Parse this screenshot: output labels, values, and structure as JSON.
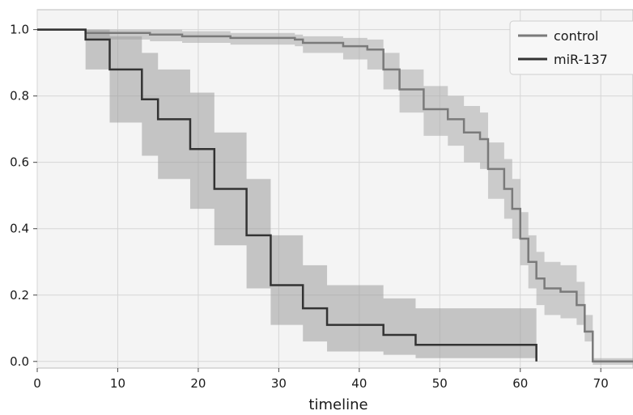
{
  "chart_data": {
    "type": "line",
    "subtype": "kaplan-meier survival curves with confidence bands",
    "title": "",
    "xlabel": "timeline",
    "ylabel": "",
    "xlim": [
      0,
      74
    ],
    "ylim": [
      -0.02,
      1.06
    ],
    "x_ticks": [
      0,
      10,
      20,
      30,
      40,
      50,
      60,
      70
    ],
    "y_ticks": [
      0.0,
      0.2,
      0.4,
      0.6,
      0.8,
      1.0
    ],
    "x_tick_labels": [
      "0",
      "10",
      "20",
      "30",
      "40",
      "50",
      "60",
      "70"
    ],
    "y_tick_labels": [
      "0.0",
      "0.2",
      "0.4",
      "0.6",
      "0.8",
      "1.0"
    ],
    "grid": true,
    "legend_position": "top-right",
    "series": [
      {
        "name": "control",
        "color": "#7a7a7a",
        "band_color": "#a9a9a9",
        "step_x": [
          0,
          6,
          9,
          14,
          18,
          24,
          32,
          33,
          38,
          41,
          43,
          45,
          48,
          51,
          53,
          55,
          56,
          58,
          59,
          60,
          61,
          62,
          63,
          65,
          67,
          68,
          69,
          75
        ],
        "step_y": [
          1.0,
          0.99,
          0.99,
          0.985,
          0.98,
          0.975,
          0.97,
          0.96,
          0.95,
          0.94,
          0.88,
          0.82,
          0.76,
          0.73,
          0.69,
          0.67,
          0.58,
          0.52,
          0.46,
          0.37,
          0.3,
          0.25,
          0.22,
          0.21,
          0.17,
          0.09,
          0.0,
          0.0
        ],
        "ci_lower": [
          1.0,
          0.97,
          0.97,
          0.965,
          0.96,
          0.955,
          0.95,
          0.93,
          0.91,
          0.88,
          0.82,
          0.75,
          0.68,
          0.65,
          0.6,
          0.58,
          0.49,
          0.43,
          0.37,
          0.29,
          0.22,
          0.17,
          0.14,
          0.13,
          0.11,
          0.06,
          -0.01,
          -0.01
        ],
        "ci_upper": [
          1.0,
          1.0,
          1.0,
          1.0,
          0.995,
          0.99,
          0.985,
          0.98,
          0.975,
          0.97,
          0.93,
          0.88,
          0.83,
          0.8,
          0.77,
          0.75,
          0.66,
          0.61,
          0.55,
          0.45,
          0.38,
          0.33,
          0.3,
          0.29,
          0.24,
          0.14,
          0.01,
          0.01
        ]
      },
      {
        "name": "miR-137",
        "color": "#333333",
        "band_color": "#9c9c9c",
        "step_x": [
          0,
          6,
          9,
          13,
          15,
          19,
          22,
          26,
          29,
          33,
          36,
          43,
          47,
          62
        ],
        "step_y": [
          1.0,
          0.97,
          0.88,
          0.79,
          0.73,
          0.64,
          0.52,
          0.38,
          0.23,
          0.16,
          0.11,
          0.08,
          0.05,
          0.0
        ],
        "ci_lower": [
          1.0,
          0.88,
          0.72,
          0.62,
          0.55,
          0.46,
          0.35,
          0.22,
          0.11,
          0.06,
          0.03,
          0.02,
          0.01,
          0.01
        ],
        "ci_upper": [
          1.0,
          1.0,
          0.98,
          0.93,
          0.88,
          0.81,
          0.69,
          0.55,
          0.38,
          0.29,
          0.23,
          0.19,
          0.16,
          0.16
        ]
      }
    ]
  }
}
